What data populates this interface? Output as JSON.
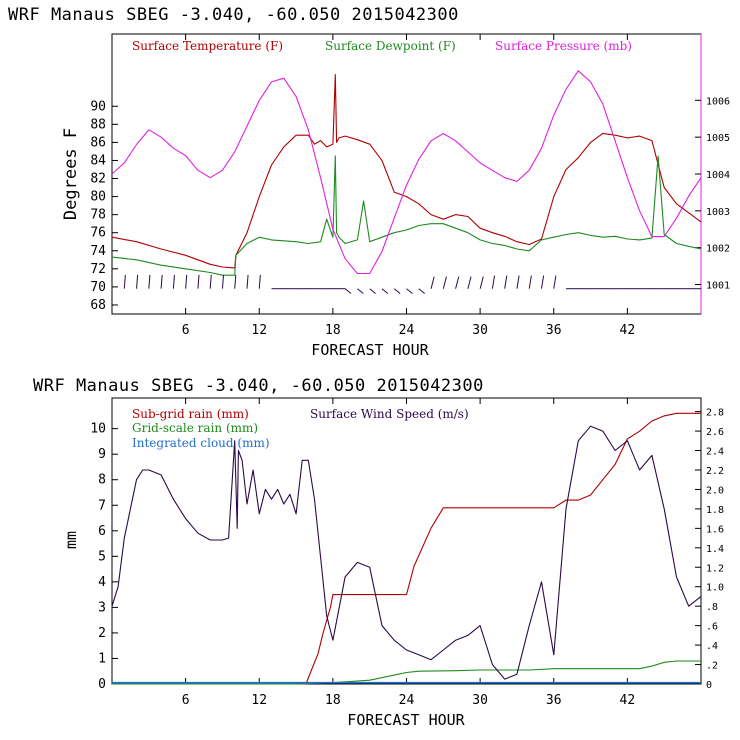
{
  "charts_title": {
    "top": "WRF   Manaus SBEG   -3.040, -60.050  2015042300",
    "bottom": "WRF   Manaus SBEG   -3.040, -60.050  2015042300"
  },
  "colors": {
    "temperature": "#b00000",
    "dewpoint": "#1e8a1e",
    "pressure": "#e020e0",
    "wind_barbs": "#2a0a4a",
    "subgrid_rain": "#b00000",
    "wind_speed": "#2a0a4a",
    "gridscale_rain": "#1e8a1e",
    "cloud": "#1e6fd0"
  },
  "chart_data": [
    {
      "type": "line",
      "title": "WRF   Manaus SBEG   -3.040, -60.050  2015042300",
      "xlabel": "FORECAST HOUR",
      "ylabel": "Degrees F",
      "xlim": [
        0,
        48
      ],
      "ylim": [
        67,
        98
      ],
      "y2lim": [
        1000.2,
        1007.8
      ],
      "xticks": [
        6,
        12,
        18,
        24,
        30,
        36,
        42
      ],
      "yticks": [
        68,
        70,
        72,
        74,
        76,
        78,
        80,
        82,
        84,
        86,
        88,
        90
      ],
      "y2ticks": [
        1001,
        1002,
        1003,
        1004,
        1005,
        1006
      ],
      "legend": [
        "Surface Temperature (F)",
        "Surface Dewpoint (F)",
        "Surface Pressure (mb)"
      ],
      "series": [
        {
          "name": "Surface Temperature (F)",
          "axis": "left",
          "x": [
            0,
            2,
            4,
            6,
            8,
            9,
            10,
            10.1,
            11,
            12,
            13,
            14,
            15,
            16,
            16.5,
            17,
            17.5,
            18,
            18.2,
            18.3,
            18.5,
            19,
            20,
            21,
            22,
            23,
            24,
            25,
            26,
            27,
            28,
            29,
            30,
            31,
            32,
            33,
            34,
            35,
            36,
            37,
            38,
            39,
            40,
            41,
            42,
            43,
            44,
            45,
            46,
            47,
            48
          ],
          "values": [
            75.5,
            75,
            74.2,
            73.5,
            72.5,
            72.2,
            72.1,
            73.5,
            76,
            80,
            83.5,
            85.5,
            86.8,
            86.8,
            85.8,
            86.2,
            85.5,
            85.8,
            93.5,
            86,
            86.5,
            86.7,
            86.3,
            85.8,
            84,
            80.5,
            80,
            79.2,
            78,
            77.5,
            78,
            77.8,
            76.5,
            76,
            75.6,
            75,
            74.7,
            75.3,
            80,
            83,
            84.3,
            86,
            87,
            86.8,
            86.5,
            86.7,
            86.2,
            81,
            79.2,
            78.2,
            77.2
          ]
        },
        {
          "name": "Surface Dewpoint (F)",
          "axis": "left",
          "x": [
            0,
            2,
            4,
            6,
            8,
            9,
            10,
            10.1,
            11,
            12,
            13,
            14,
            15,
            16,
            17,
            17.5,
            18,
            18.2,
            18.3,
            18.5,
            19,
            20,
            20.5,
            21,
            22,
            23,
            24,
            25,
            26,
            27,
            28,
            29,
            30,
            31,
            32,
            33,
            34,
            35,
            36,
            37,
            38,
            39,
            40,
            41,
            42,
            43,
            44,
            44.5,
            45,
            46,
            47,
            48
          ],
          "values": [
            73.3,
            73,
            72.4,
            72,
            71.6,
            71.3,
            71.3,
            73.5,
            74.8,
            75.5,
            75.2,
            75.1,
            75,
            74.8,
            75,
            77.5,
            75.5,
            84.5,
            76,
            75.5,
            74.8,
            75.2,
            79.5,
            75,
            75.5,
            76,
            76.3,
            76.8,
            77,
            77,
            76.5,
            76,
            75.2,
            74.8,
            74.6,
            74.2,
            74,
            75.2,
            75.5,
            75.8,
            76,
            75.7,
            75.5,
            75.6,
            75.3,
            75.2,
            75.4,
            84.5,
            75.8,
            74.8,
            74.5,
            74.2
          ]
        },
        {
          "name": "Surface Pressure (mb)",
          "axis": "right",
          "x": [
            0,
            1,
            2,
            3,
            4,
            5,
            6,
            7,
            8,
            9,
            10,
            11,
            12,
            13,
            14,
            15,
            16,
            17,
            18,
            19,
            20,
            21,
            22,
            23,
            24,
            25,
            26,
            27,
            28,
            29,
            30,
            31,
            32,
            33,
            34,
            35,
            36,
            37,
            38,
            39,
            40,
            41,
            42,
            43,
            44,
            45,
            46,
            47,
            48
          ],
          "values": [
            1004,
            1004.3,
            1004.8,
            1005.2,
            1005,
            1004.7,
            1004.5,
            1004.1,
            1003.9,
            1004.1,
            1004.6,
            1005.3,
            1006,
            1006.5,
            1006.6,
            1006.1,
            1005.2,
            1003.9,
            1002.5,
            1001.7,
            1001.3,
            1001.3,
            1001.9,
            1002.8,
            1003.7,
            1004.4,
            1004.9,
            1005.1,
            1004.9,
            1004.6,
            1004.3,
            1004.1,
            1003.9,
            1003.8,
            1004.1,
            1004.7,
            1005.6,
            1006.3,
            1006.8,
            1006.5,
            1005.9,
            1004.9,
            1003.9,
            1003,
            1002.3,
            1002.3,
            1002.8,
            1003.4,
            1003.9
          ]
        }
      ],
      "barbs_y": 69.8
    },
    {
      "type": "line",
      "title": "WRF   Manaus SBEG   -3.040, -60.050  2015042300",
      "xlabel": "FORECAST HOUR",
      "ylabel": "mm",
      "xlim": [
        0,
        48
      ],
      "ylim": [
        0,
        11.2
      ],
      "y2lim": [
        0,
        2.94
      ],
      "xticks": [
        6,
        12,
        18,
        24,
        30,
        36,
        42
      ],
      "yticks": [
        0,
        1,
        2,
        3,
        4,
        5,
        6,
        7,
        8,
        9,
        10
      ],
      "y2ticks": [
        "0",
        ".2",
        ".4",
        ".6",
        ".8",
        "1.0",
        "1.2",
        "1.4",
        "1.6",
        "1.8",
        "2.0",
        "2.2",
        "2.4",
        "2.6",
        "2.8"
      ],
      "legend": [
        "Sub-grid rain (mm)",
        "Surface Wind Speed (m/s)",
        "Grid-scale rain (mm)",
        "Integrated cloud (mm)"
      ],
      "series": [
        {
          "name": "Sub-grid rain (mm)",
          "axis": "left",
          "x": [
            0,
            15.8,
            16.8,
            17.2,
            17.8,
            18,
            24,
            24.6,
            26,
            27,
            30,
            35,
            36,
            37,
            38,
            39,
            40,
            41,
            42,
            43,
            44,
            45,
            46,
            47,
            48
          ],
          "values": [
            0,
            0,
            1.2,
            2,
            3,
            3.5,
            3.5,
            4.6,
            6.1,
            6.9,
            6.9,
            6.9,
            6.9,
            7.2,
            7.2,
            7.4,
            8,
            8.6,
            9.6,
            9.9,
            10.3,
            10.5,
            10.6,
            10.6,
            10.6
          ]
        },
        {
          "name": "Grid-scale rain (mm)",
          "axis": "left",
          "x": [
            0,
            15,
            18,
            21,
            23,
            24,
            25,
            28,
            30,
            34,
            36,
            40,
            43,
            44,
            45,
            46,
            48
          ],
          "values": [
            0,
            0,
            0.05,
            0.15,
            0.35,
            0.45,
            0.5,
            0.52,
            0.55,
            0.55,
            0.6,
            0.6,
            0.6,
            0.7,
            0.85,
            0.9,
            0.9
          ]
        },
        {
          "name": "Integrated cloud (mm)",
          "axis": "left",
          "x": [
            0,
            48
          ],
          "values": [
            0.05,
            0.05
          ]
        },
        {
          "name": "Surface Wind Speed (m/s)",
          "axis": "right",
          "x": [
            0,
            0.5,
            1,
            2,
            2.5,
            3,
            4,
            5,
            6,
            7,
            8,
            9,
            9.5,
            10,
            10.2,
            10.3,
            10.6,
            11,
            11.5,
            12,
            12.5,
            13,
            13.5,
            14,
            14.5,
            15,
            15.5,
            16,
            16.5,
            17,
            17.5,
            18,
            19,
            20,
            21,
            22,
            23,
            24,
            25,
            26,
            27,
            28,
            29,
            30,
            31,
            32,
            33,
            34,
            35,
            36,
            37,
            38,
            39,
            40,
            41,
            42,
            43,
            44,
            45,
            46,
            47,
            48
          ],
          "values": [
            0.8,
            1,
            1.5,
            2.1,
            2.2,
            2.2,
            2.15,
            1.9,
            1.7,
            1.55,
            1.48,
            1.48,
            1.5,
            2.5,
            1.6,
            2.4,
            2.3,
            1.85,
            2.2,
            1.75,
            2,
            1.9,
            2,
            1.85,
            1.95,
            1.75,
            2.3,
            2.3,
            1.9,
            1.3,
            0.7,
            0.45,
            1.1,
            1.25,
            1.2,
            0.6,
            0.45,
            0.35,
            0.3,
            0.25,
            0.35,
            0.45,
            0.5,
            0.6,
            0.2,
            0.05,
            0.1,
            0.6,
            1.05,
            0.3,
            1.8,
            2.5,
            2.65,
            2.6,
            2.4,
            2.5,
            2.2,
            2.35,
            1.8,
            1.1,
            0.8,
            0.9
          ]
        }
      ]
    }
  ]
}
